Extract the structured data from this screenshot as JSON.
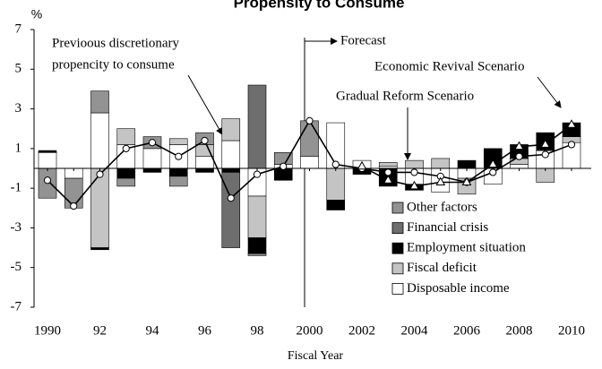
{
  "chart_data": {
    "type": "bar",
    "title": "Propensity to Consume",
    "y_unit": "%",
    "x_label": "Fiscal Year",
    "categories": [
      "1990",
      null,
      "92",
      null,
      "94",
      null,
      "96",
      null,
      "98",
      null,
      "2000",
      null,
      "2002",
      null,
      "2004",
      null,
      "2006",
      null,
      "2008",
      null,
      "2010"
    ],
    "series": [
      {
        "name": "Other factors",
        "color": "#939393",
        "values": [
          -1.5,
          -1.5,
          1.1,
          -0.4,
          0.6,
          -0.5,
          0.6,
          0,
          -0.1,
          0.6,
          1.8,
          0,
          0,
          0,
          0,
          0,
          0,
          0,
          0,
          0,
          0
        ]
      },
      {
        "name": "Financial crisis",
        "color": "#6e6e6e",
        "values": [
          0,
          0,
          0,
          0,
          0,
          0,
          0,
          -3.8,
          4.2,
          0,
          0,
          0,
          0,
          0,
          0,
          0,
          0,
          0,
          0,
          0,
          0
        ]
      },
      {
        "name": "Employment situation",
        "color": "#000000",
        "values": [
          0.1,
          0,
          -0.1,
          -0.5,
          -0.2,
          -0.4,
          -0.2,
          -0.2,
          -0.8,
          -0.6,
          0,
          -0.5,
          -0.3,
          -0.9,
          -0.3,
          0,
          0.4,
          1.0,
          0.7,
          0.9,
          0.7
        ]
      },
      {
        "name": "Fiscal deficit",
        "color": "#c4c4c4",
        "values": [
          0,
          0,
          -4.0,
          0.8,
          0,
          0.3,
          0.6,
          1.1,
          -2.1,
          0,
          0,
          -1.6,
          0,
          0.2,
          0.4,
          0.5,
          -0.8,
          0,
          0.3,
          -0.7,
          0.3
        ]
      },
      {
        "name": "Disposable income",
        "color": "#ffffff",
        "values": [
          0.8,
          -0.5,
          2.8,
          1.2,
          1.0,
          1.2,
          0.6,
          1.4,
          -1.4,
          0.2,
          0.6,
          2.3,
          0.4,
          0.1,
          -0.8,
          -1.2,
          -0.5,
          -0.8,
          0.2,
          0.9,
          1.3
        ]
      }
    ],
    "lines": [
      {
        "marker": "circle",
        "values": [
          -0.6,
          -1.9,
          -0.3,
          1.0,
          1.3,
          0.6,
          1.4,
          -1.5,
          -0.3,
          0.1,
          2.4,
          0.2,
          0.0,
          -0.2,
          -0.2,
          -0.4,
          -0.7,
          -0.2,
          0.6,
          0.7,
          1.2
        ]
      },
      {
        "marker": "triangle",
        "values": [
          null,
          null,
          null,
          null,
          null,
          null,
          null,
          null,
          null,
          null,
          null,
          null,
          0.1,
          -0.6,
          -0.9,
          -0.7,
          -0.7,
          0.2,
          1.1,
          1.2,
          2.2
        ]
      }
    ],
    "ylim": [
      -7,
      7
    ],
    "yticks": [
      -7,
      -5,
      -3,
      -1,
      1,
      3,
      5,
      7
    ],
    "annotations": {
      "previous": [
        "Previoous discretionary",
        "propencity to consume"
      ],
      "forecast": "Forecast",
      "revival": "Economic Revival Scenario",
      "gradual": "Gradual Reform Scenario"
    },
    "legend": "lower right"
  }
}
